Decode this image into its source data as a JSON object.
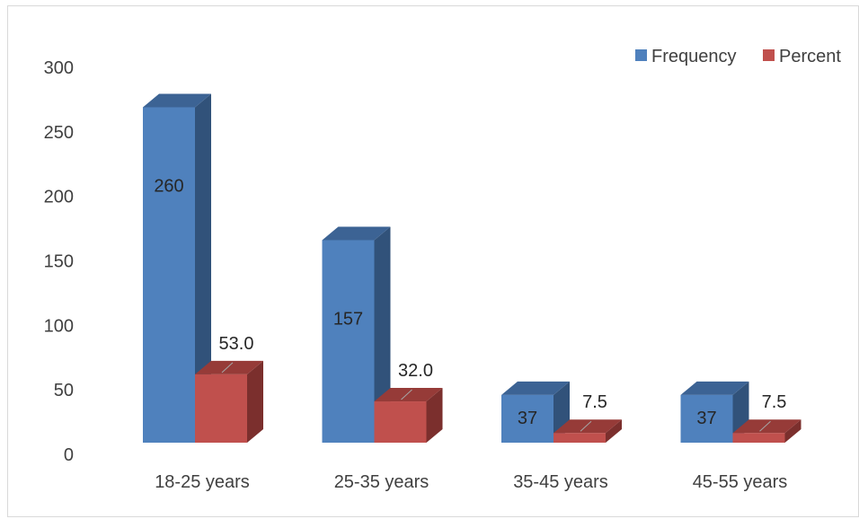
{
  "chart_data": {
    "type": "bar",
    "style": "3d-column",
    "categories": [
      "18-25 years",
      "25-35 years",
      "35-45 years",
      "45-55 years"
    ],
    "series": [
      {
        "name": "Frequency",
        "values": [
          260,
          157,
          37,
          37
        ],
        "labels": [
          "260",
          "157",
          "37",
          "37"
        ],
        "color": "#4f81bd",
        "side_color": "#31527a",
        "top_color": "#3c6394"
      },
      {
        "name": "Percent",
        "values": [
          53.0,
          32.0,
          7.5,
          7.5
        ],
        "labels": [
          "53.0",
          "32.0",
          "7.5",
          "7.5"
        ],
        "color": "#c0504d",
        "side_color": "#7b2f2d",
        "top_color": "#963b38"
      }
    ],
    "y_ticks": [
      "0",
      "50",
      "100",
      "150",
      "200",
      "250",
      "300"
    ],
    "ylim": [
      0,
      300
    ],
    "grid": false,
    "legend_position": "top-right",
    "title": "",
    "xlabel": "",
    "ylabel": ""
  }
}
